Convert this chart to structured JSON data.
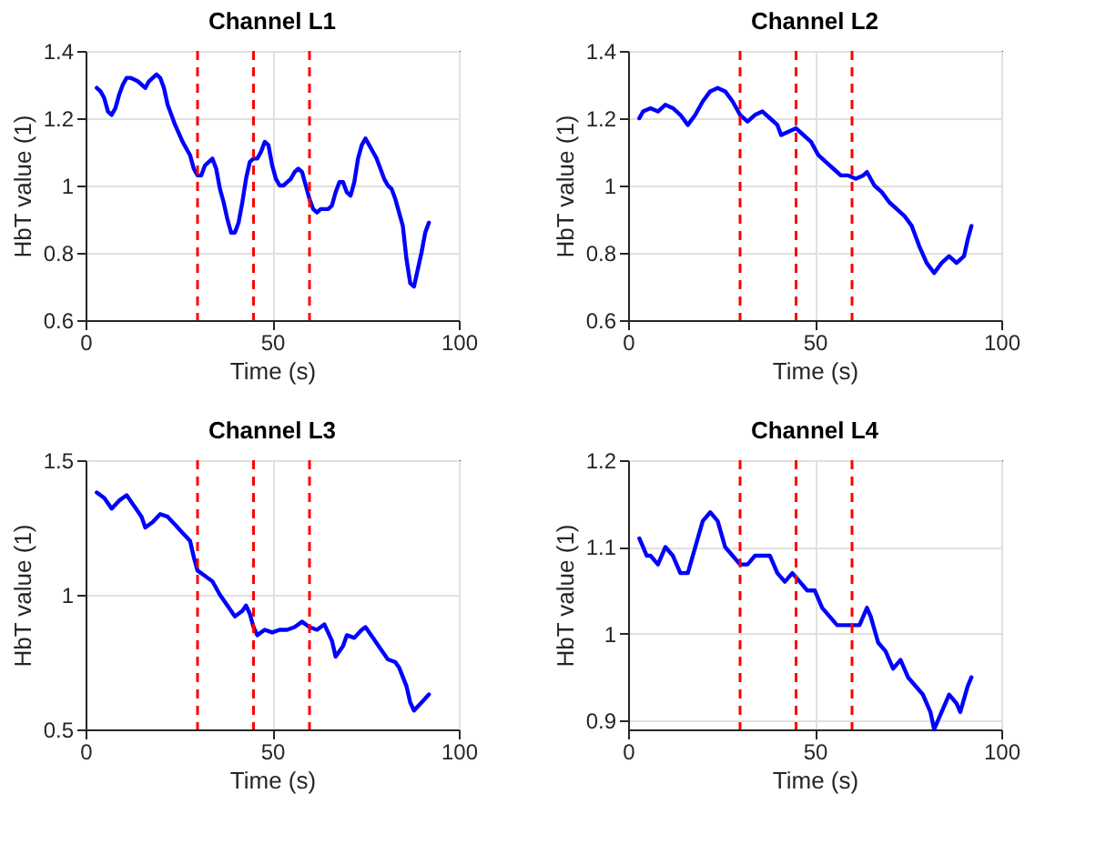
{
  "chart_data": [
    {
      "type": "line",
      "title": "Channel L1",
      "xlabel": "Time (s)",
      "ylabel": "HbT value (1)",
      "xlim": [
        0,
        100
      ],
      "xticks": [
        0,
        50,
        100
      ],
      "ylim": [
        0.6,
        1.4
      ],
      "yticks": [
        0.6,
        0.8,
        1,
        1.2,
        1.4
      ],
      "grid": true,
      "line_style": "solid",
      "series": [
        {
          "color": "#0000ff",
          "x": [
            3,
            4,
            5,
            6,
            7,
            8,
            9,
            10,
            11,
            12,
            14,
            15,
            16,
            17,
            18,
            19,
            20,
            21,
            22,
            24,
            26,
            28,
            29,
            30,
            31,
            32,
            33,
            34,
            35,
            36,
            37,
            38,
            39,
            40,
            41,
            42,
            43,
            44,
            45,
            46,
            47,
            48,
            49,
            50,
            51,
            52,
            53,
            54,
            55,
            56,
            57,
            58,
            59,
            60,
            61,
            62,
            63,
            64,
            65,
            66,
            67,
            68,
            69,
            70,
            71,
            72,
            73,
            74,
            75,
            76,
            77,
            78,
            79,
            80,
            81,
            82,
            83,
            85,
            86,
            87,
            88,
            89,
            90,
            91,
            92
          ],
          "values": [
            1.29,
            1.28,
            1.26,
            1.22,
            1.21,
            1.23,
            1.27,
            1.3,
            1.32,
            1.32,
            1.31,
            1.3,
            1.29,
            1.31,
            1.32,
            1.33,
            1.32,
            1.29,
            1.24,
            1.18,
            1.13,
            1.09,
            1.05,
            1.03,
            1.03,
            1.06,
            1.07,
            1.08,
            1.05,
            0.99,
            0.95,
            0.9,
            0.86,
            0.86,
            0.89,
            0.95,
            1.02,
            1.07,
            1.08,
            1.08,
            1.1,
            1.13,
            1.12,
            1.06,
            1.02,
            1.0,
            1.0,
            1.01,
            1.02,
            1.04,
            1.05,
            1.04,
            1.0,
            0.96,
            0.93,
            0.92,
            0.93,
            0.93,
            0.93,
            0.94,
            0.98,
            1.01,
            1.01,
            0.98,
            0.97,
            1.01,
            1.08,
            1.12,
            1.14,
            1.12,
            1.1,
            1.08,
            1.05,
            1.02,
            1.0,
            0.99,
            0.96,
            0.88,
            0.78,
            0.71,
            0.7,
            0.75,
            0.8,
            0.86,
            0.89
          ]
        }
      ],
      "ref_lines": [
        {
          "axis": "x",
          "value": 30,
          "color": "#ff0000",
          "line_style": "dashed"
        },
        {
          "axis": "x",
          "value": 45,
          "color": "#ff0000",
          "line_style": "dashed"
        },
        {
          "axis": "x",
          "value": 60,
          "color": "#ff0000",
          "line_style": "dashed"
        }
      ]
    },
    {
      "type": "line",
      "title": "Channel L2",
      "xlabel": "Time (s)",
      "ylabel": "HbT value (1)",
      "xlim": [
        0,
        100
      ],
      "xticks": [
        0,
        50,
        100
      ],
      "ylim": [
        0.6,
        1.4
      ],
      "yticks": [
        0.6,
        0.8,
        1,
        1.2,
        1.4
      ],
      "grid": true,
      "line_style": "solid",
      "series": [
        {
          "color": "#0000ff",
          "x": [
            3,
            4,
            6,
            8,
            10,
            12,
            14,
            16,
            18,
            20,
            22,
            24,
            26,
            28,
            30,
            32,
            34,
            36,
            38,
            40,
            41,
            43,
            45,
            47,
            49,
            51,
            53,
            55,
            57,
            59,
            61,
            63,
            64,
            66,
            68,
            70,
            72,
            74,
            76,
            78,
            80,
            82,
            84,
            86,
            88,
            90,
            91,
            92
          ],
          "values": [
            1.2,
            1.22,
            1.23,
            1.22,
            1.24,
            1.23,
            1.21,
            1.18,
            1.21,
            1.25,
            1.28,
            1.29,
            1.28,
            1.25,
            1.21,
            1.19,
            1.21,
            1.22,
            1.2,
            1.18,
            1.15,
            1.16,
            1.17,
            1.15,
            1.13,
            1.09,
            1.07,
            1.05,
            1.03,
            1.03,
            1.02,
            1.03,
            1.04,
            1.0,
            0.98,
            0.95,
            0.93,
            0.91,
            0.88,
            0.82,
            0.77,
            0.74,
            0.77,
            0.79,
            0.77,
            0.79,
            0.84,
            0.88
          ]
        }
      ],
      "ref_lines": [
        {
          "axis": "x",
          "value": 30,
          "color": "#ff0000",
          "line_style": "dashed"
        },
        {
          "axis": "x",
          "value": 45,
          "color": "#ff0000",
          "line_style": "dashed"
        },
        {
          "axis": "x",
          "value": 60,
          "color": "#ff0000",
          "line_style": "dashed"
        }
      ]
    },
    {
      "type": "line",
      "title": "Channel L3",
      "xlabel": "Time (s)",
      "ylabel": "HbT value (1)",
      "xlim": [
        0,
        100
      ],
      "xticks": [
        0,
        50,
        100
      ],
      "ylim": [
        0.5,
        1.5
      ],
      "yticks": [
        0.5,
        1,
        1.5
      ],
      "grid": true,
      "line_style": "solid",
      "series": [
        {
          "color": "#0000ff",
          "x": [
            3,
            5,
            7,
            9,
            11,
            13,
            15,
            16,
            18,
            20,
            22,
            24,
            26,
            28,
            29,
            30,
            32,
            34,
            36,
            38,
            40,
            42,
            43,
            44,
            45,
            46,
            48,
            50,
            52,
            54,
            56,
            58,
            60,
            62,
            64,
            66,
            67,
            69,
            70,
            72,
            74,
            75,
            77,
            79,
            81,
            83,
            84,
            86,
            87,
            88,
            90,
            92
          ],
          "values": [
            1.38,
            1.36,
            1.32,
            1.35,
            1.37,
            1.33,
            1.29,
            1.25,
            1.27,
            1.3,
            1.29,
            1.26,
            1.23,
            1.2,
            1.14,
            1.09,
            1.07,
            1.05,
            1.0,
            0.96,
            0.92,
            0.94,
            0.96,
            0.93,
            0.88,
            0.85,
            0.87,
            0.86,
            0.87,
            0.87,
            0.88,
            0.9,
            0.88,
            0.87,
            0.89,
            0.83,
            0.77,
            0.81,
            0.85,
            0.84,
            0.87,
            0.88,
            0.84,
            0.8,
            0.76,
            0.75,
            0.73,
            0.66,
            0.6,
            0.57,
            0.6,
            0.63
          ]
        }
      ],
      "ref_lines": [
        {
          "axis": "x",
          "value": 30,
          "color": "#ff0000",
          "line_style": "dashed"
        },
        {
          "axis": "x",
          "value": 45,
          "color": "#ff0000",
          "line_style": "dashed"
        },
        {
          "axis": "x",
          "value": 60,
          "color": "#ff0000",
          "line_style": "dashed"
        }
      ]
    },
    {
      "type": "line",
      "title": "Channel L4",
      "xlabel": "Time (s)",
      "ylabel": "HbT value (1)",
      "xlim": [
        0,
        100
      ],
      "xticks": [
        0,
        50,
        100
      ],
      "ylim": [
        0.89,
        1.2
      ],
      "yticks": [
        0.9,
        1,
        1.1,
        1.2
      ],
      "grid": true,
      "line_style": "solid",
      "series": [
        {
          "color": "#0000ff",
          "x": [
            3,
            4,
            5,
            6,
            8,
            10,
            12,
            14,
            16,
            18,
            20,
            22,
            24,
            26,
            28,
            30,
            32,
            34,
            36,
            38,
            40,
            42,
            44,
            46,
            48,
            50,
            52,
            54,
            56,
            58,
            60,
            62,
            64,
            65,
            67,
            69,
            71,
            73,
            75,
            77,
            79,
            81,
            82,
            84,
            86,
            88,
            89,
            91,
            92
          ],
          "values": [
            1.11,
            1.1,
            1.09,
            1.09,
            1.08,
            1.1,
            1.09,
            1.07,
            1.07,
            1.1,
            1.13,
            1.14,
            1.13,
            1.1,
            1.09,
            1.08,
            1.08,
            1.09,
            1.09,
            1.09,
            1.07,
            1.06,
            1.07,
            1.06,
            1.05,
            1.05,
            1.03,
            1.02,
            1.01,
            1.01,
            1.01,
            1.01,
            1.03,
            1.02,
            0.99,
            0.98,
            0.96,
            0.97,
            0.95,
            0.94,
            0.93,
            0.91,
            0.89,
            0.91,
            0.93,
            0.92,
            0.91,
            0.94,
            0.95
          ]
        }
      ],
      "ref_lines": [
        {
          "axis": "x",
          "value": 30,
          "color": "#ff0000",
          "line_style": "dashed"
        },
        {
          "axis": "x",
          "value": 45,
          "color": "#ff0000",
          "line_style": "dashed"
        },
        {
          "axis": "x",
          "value": 60,
          "color": "#ff0000",
          "line_style": "dashed"
        }
      ]
    }
  ]
}
